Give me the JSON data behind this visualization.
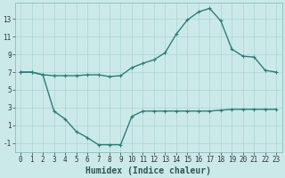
{
  "line1_x": [
    0,
    1,
    2,
    3,
    4,
    5,
    6,
    7,
    8,
    9,
    10,
    11,
    12,
    13,
    14,
    15,
    16,
    17,
    18,
    19,
    20,
    21,
    22,
    23
  ],
  "line1_y": [
    7.0,
    7.0,
    6.7,
    6.6,
    6.6,
    6.6,
    6.7,
    6.7,
    6.5,
    6.6,
    7.5,
    8.0,
    8.4,
    9.2,
    11.3,
    12.9,
    13.8,
    14.2,
    12.8,
    9.6,
    8.8,
    8.7,
    7.2,
    7.0
  ],
  "line2_x": [
    0,
    1,
    2,
    3,
    4,
    5,
    6,
    7,
    8,
    9,
    10,
    11,
    12,
    13,
    14,
    15,
    16,
    17,
    18,
    19,
    20,
    21,
    22,
    23
  ],
  "line2_y": [
    7.0,
    7.0,
    6.7,
    2.6,
    1.7,
    0.3,
    -0.4,
    -1.2,
    -1.2,
    -1.2,
    2.0,
    2.6,
    2.6,
    2.6,
    2.6,
    2.6,
    2.6,
    2.6,
    2.7,
    2.8,
    2.8,
    2.8,
    2.8,
    2.8
  ],
  "line_color": "#2d7d78",
  "bg_color": "#cce9e9",
  "grid_color": "#aad4d4",
  "marker": "+",
  "marker_size": 3,
  "xlabel": "Humidex (Indice chaleur)",
  "xlabel_fontsize": 7,
  "ylim": [
    -2,
    14.8
  ],
  "xlim": [
    -0.5,
    23.5
  ],
  "yticks": [
    -1,
    1,
    3,
    5,
    7,
    9,
    11,
    13
  ],
  "xtick_labels": [
    "0",
    "1",
    "2",
    "3",
    "4",
    "5",
    "6",
    "7",
    "8",
    "9",
    "10",
    "11",
    "12",
    "13",
    "14",
    "15",
    "16",
    "17",
    "18",
    "19",
    "20",
    "21",
    "22",
    "23"
  ],
  "tick_fontsize": 5.5,
  "linewidth": 1.0
}
